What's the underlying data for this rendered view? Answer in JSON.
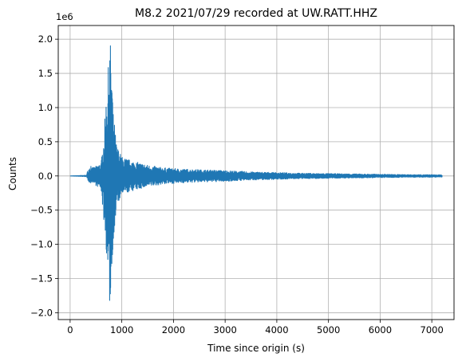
{
  "chart_data": {
    "type": "line",
    "title": "M8.2 2021/07/29 recorded at UW.RATT.HHZ",
    "xlabel": "Time since origin (s)",
    "ylabel": "Counts",
    "y_scale_label": "1e6",
    "xlim": [
      -230,
      7430
    ],
    "ylim": [
      -2.1,
      2.2
    ],
    "y_unit_multiplier": 1000000,
    "x_ticks": [
      0,
      1000,
      2000,
      3000,
      4000,
      5000,
      6000,
      7000
    ],
    "x_tick_labels": [
      "0",
      "1000",
      "2000",
      "3000",
      "4000",
      "5000",
      "6000",
      "7000"
    ],
    "y_ticks": [
      -2.0,
      -1.5,
      -1.0,
      -0.5,
      0.0,
      0.5,
      1.0,
      1.5,
      2.0
    ],
    "y_tick_labels": [
      "−2.0",
      "−1.5",
      "−1.0",
      "−0.5",
      "0.0",
      "0.5",
      "1.0",
      "1.5",
      "2.0"
    ],
    "grid": true,
    "line_color": "#1f77b4",
    "grid_color": "#b0b0b0",
    "series": [
      {
        "x": [
          0,
          320,
          330,
          400,
          420,
          500,
          600,
          650,
          700,
          730,
          760,
          780,
          800,
          830,
          860,
          900,
          1000,
          1200,
          1500,
          1800,
          2200,
          2600,
          3000,
          3500,
          4000,
          4500,
          5000,
          5500,
          6000,
          6500,
          7000,
          7200
        ],
        "y_upper": [
          0.0,
          0.01,
          0.06,
          0.18,
          0.12,
          0.14,
          0.2,
          0.55,
          1.2,
          1.45,
          1.98,
          1.95,
          1.85,
          0.95,
          0.75,
          0.45,
          0.28,
          0.22,
          0.16,
          0.12,
          0.1,
          0.09,
          0.08,
          0.06,
          0.05,
          0.04,
          0.035,
          0.03,
          0.025,
          0.02,
          0.018,
          0.015
        ],
        "y_lower": [
          0.0,
          -0.01,
          -0.05,
          -0.12,
          -0.08,
          -0.14,
          -0.2,
          -0.65,
          -1.1,
          -1.6,
          -1.92,
          -1.9,
          -1.75,
          -0.95,
          -0.85,
          -0.45,
          -0.28,
          -0.22,
          -0.16,
          -0.12,
          -0.1,
          -0.09,
          -0.08,
          -0.06,
          -0.05,
          -0.04,
          -0.035,
          -0.03,
          -0.025,
          -0.02,
          -0.018,
          -0.015
        ]
      }
    ]
  }
}
